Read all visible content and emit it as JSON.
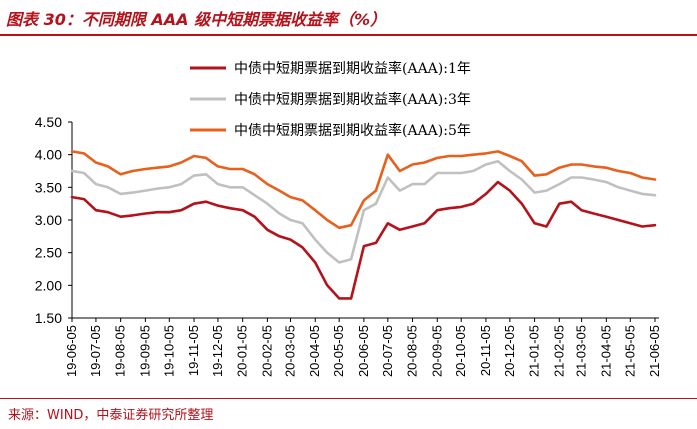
{
  "title": "图表 30：不同期限 AAA 级中短期票据收益率（%）",
  "source": "来源：WIND，中泰证券研究所整理",
  "chart_data": {
    "type": "line",
    "title": "图表 30：不同期限 AAA 级中短期票据收益率（%）",
    "xlabel": "",
    "ylabel": "",
    "ylim": [
      1.5,
      4.5
    ],
    "yticks": [
      "1.50",
      "2.00",
      "2.50",
      "3.00",
      "3.50",
      "4.00",
      "4.50"
    ],
    "grid": false,
    "legend_position": "top-right",
    "xtick_labels": [
      "19-06-05",
      "19-07-05",
      "19-08-05",
      "19-09-05",
      "19-10-05",
      "19-11-05",
      "19-12-05",
      "20-01-05",
      "20-02-05",
      "20-03-05",
      "20-04-05",
      "20-05-05",
      "20-06-05",
      "20-07-05",
      "20-08-05",
      "20-09-05",
      "20-10-05",
      "20-11-05",
      "20-12-05",
      "21-01-05",
      "21-02-05",
      "21-03-05",
      "21-04-05",
      "21-05-05",
      "21-06-05"
    ],
    "x": [
      "2019-06-05",
      "2019-06-20",
      "2019-07-05",
      "2019-07-20",
      "2019-08-05",
      "2019-08-20",
      "2019-09-05",
      "2019-09-20",
      "2019-10-05",
      "2019-10-20",
      "2019-11-05",
      "2019-11-20",
      "2019-12-05",
      "2019-12-20",
      "2020-01-05",
      "2020-01-20",
      "2020-02-05",
      "2020-02-20",
      "2020-03-05",
      "2020-03-20",
      "2020-04-05",
      "2020-04-20",
      "2020-05-05",
      "2020-05-20",
      "2020-06-05",
      "2020-06-20",
      "2020-07-05",
      "2020-07-20",
      "2020-08-05",
      "2020-08-20",
      "2020-09-05",
      "2020-09-20",
      "2020-10-05",
      "2020-10-20",
      "2020-11-05",
      "2020-11-20",
      "2020-12-05",
      "2020-12-20",
      "2021-01-05",
      "2021-01-20",
      "2021-02-05",
      "2021-02-20",
      "2021-03-05",
      "2021-03-20",
      "2021-04-05",
      "2021-04-20",
      "2021-05-05",
      "2021-05-20",
      "2021-06-05"
    ],
    "series": [
      {
        "name": "中债中短期票据到期收益率(AAA):1年",
        "color": "#b5121b",
        "values": [
          3.35,
          3.32,
          3.15,
          3.12,
          3.05,
          3.07,
          3.1,
          3.12,
          3.12,
          3.15,
          3.25,
          3.28,
          3.22,
          3.18,
          3.15,
          3.05,
          2.85,
          2.75,
          2.7,
          2.58,
          2.35,
          2.0,
          1.8,
          1.8,
          2.6,
          2.65,
          2.95,
          2.85,
          2.9,
          2.95,
          3.15,
          3.18,
          3.2,
          3.25,
          3.4,
          3.58,
          3.45,
          3.25,
          2.95,
          2.9,
          3.25,
          3.28,
          3.15,
          3.1,
          3.05,
          3.0,
          2.95,
          2.9,
          2.92
        ]
      },
      {
        "name": "中债中短期票据到期收益率(AAA):3年",
        "color": "#c0c0c0",
        "values": [
          3.75,
          3.72,
          3.55,
          3.5,
          3.4,
          3.42,
          3.45,
          3.48,
          3.5,
          3.55,
          3.68,
          3.7,
          3.55,
          3.5,
          3.5,
          3.38,
          3.25,
          3.1,
          3.0,
          2.95,
          2.7,
          2.5,
          2.35,
          2.4,
          3.15,
          3.25,
          3.65,
          3.45,
          3.55,
          3.55,
          3.72,
          3.72,
          3.72,
          3.75,
          3.85,
          3.9,
          3.75,
          3.62,
          3.42,
          3.45,
          3.55,
          3.65,
          3.65,
          3.62,
          3.58,
          3.5,
          3.45,
          3.4,
          3.38
        ]
      },
      {
        "name": "中债中短期票据到期收益率(AAA):5年",
        "color": "#e8601c",
        "values": [
          4.05,
          4.02,
          3.88,
          3.82,
          3.7,
          3.75,
          3.78,
          3.8,
          3.82,
          3.88,
          3.98,
          3.95,
          3.82,
          3.78,
          3.78,
          3.7,
          3.55,
          3.45,
          3.35,
          3.3,
          3.15,
          3.0,
          2.88,
          2.92,
          3.3,
          3.45,
          4.0,
          3.75,
          3.85,
          3.88,
          3.95,
          3.98,
          3.98,
          4.0,
          4.02,
          4.05,
          3.98,
          3.9,
          3.68,
          3.7,
          3.8,
          3.85,
          3.85,
          3.82,
          3.8,
          3.75,
          3.72,
          3.65,
          3.62
        ]
      }
    ]
  }
}
